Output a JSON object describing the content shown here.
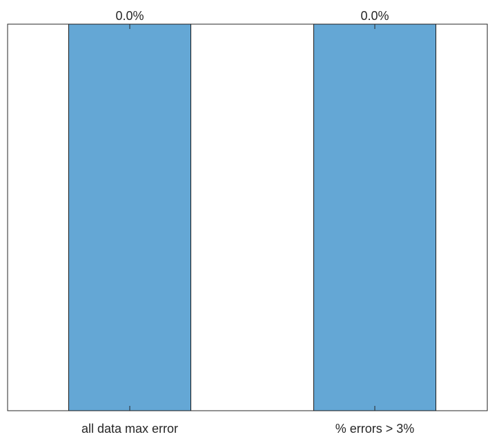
{
  "chart_data": {
    "type": "bar",
    "categories": [
      "all data max error",
      "% errors > 3%"
    ],
    "values": [
      0.0,
      0.0
    ],
    "data_labels": [
      "0.0%",
      "0.0%"
    ],
    "title": "",
    "xlabel": "",
    "ylabel": "",
    "grid": false,
    "bar_color": "#64a7d5"
  }
}
